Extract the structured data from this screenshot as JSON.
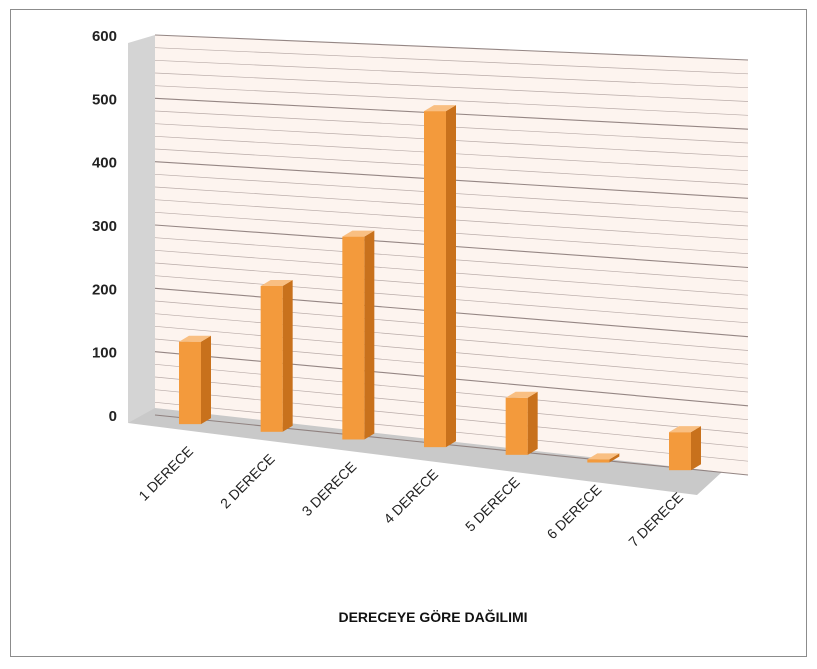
{
  "chart_data": {
    "type": "bar",
    "title": "",
    "xlabel": "DERECEYE GÖRE DAĞILIMI",
    "ylabel": "",
    "categories": [
      "1 DERECE",
      "2 DERECE",
      "3 DERECE",
      "4 DERECE",
      "5 DERECE",
      "6 DERECE",
      "7 DERECE"
    ],
    "values": [
      130,
      230,
      320,
      530,
      90,
      5,
      60
    ],
    "yticks": [
      "0",
      "100",
      "200",
      "300",
      "400",
      "500",
      "600"
    ],
    "ylim": [
      0,
      600
    ],
    "grid": true,
    "legend": "none",
    "colors": {
      "bar_front": "#f39a3c",
      "bar_side": "#c8711c",
      "bar_top": "#f9bf82",
      "wall": "#fdf4ef",
      "grid": "#8a7a78",
      "floor": "#c9c9c9",
      "side_wall": "#d4d4d4"
    }
  }
}
